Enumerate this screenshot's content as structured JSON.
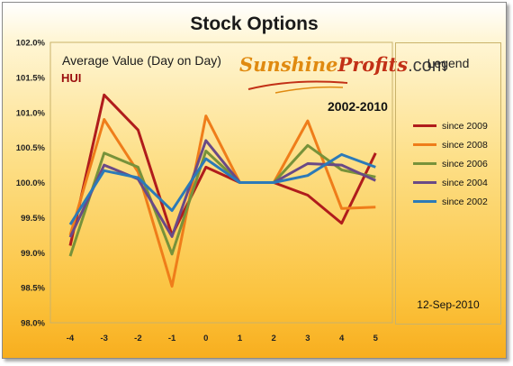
{
  "title": "Stock Options",
  "chart_data": {
    "type": "line",
    "subtitle": "Average Value (Day on Day)",
    "asset": "HUI",
    "period": "2002-2010",
    "date": "12-Sep-2010",
    "legend_title": "Legend",
    "legend_position": "right",
    "grid": false,
    "x": [
      -4,
      -3,
      -2,
      -1,
      0,
      1,
      2,
      3,
      4,
      5
    ],
    "ylim": [
      98.0,
      102.0
    ],
    "y_ticks": [
      "98.0%",
      "98.5%",
      "99.0%",
      "99.5%",
      "100.0%",
      "100.5%",
      "101.0%",
      "101.5%",
      "102.0%"
    ],
    "x_ticks": [
      "-4",
      "-3",
      "-2",
      "-1",
      "0",
      "1",
      "2",
      "3",
      "4",
      "5"
    ],
    "series": [
      {
        "name": "since 2009",
        "color": "#b01c1c",
        "values": [
          99.1,
          101.25,
          100.75,
          99.25,
          100.22,
          100.0,
          100.0,
          99.82,
          99.42,
          100.42
        ]
      },
      {
        "name": "since 2008",
        "color": "#ef7d1a",
        "values": [
          99.25,
          100.9,
          100.15,
          98.52,
          100.95,
          100.0,
          100.0,
          100.88,
          99.63,
          99.65
        ]
      },
      {
        "name": "since 2006",
        "color": "#77923a",
        "values": [
          98.95,
          100.42,
          100.22,
          98.98,
          100.45,
          100.0,
          100.0,
          100.53,
          100.18,
          100.08
        ]
      },
      {
        "name": "since 2004",
        "color": "#6a4a86",
        "values": [
          99.22,
          100.25,
          100.05,
          99.23,
          100.6,
          100.0,
          100.0,
          100.27,
          100.25,
          100.03
        ]
      },
      {
        "name": "since 2002",
        "color": "#2c7ab8",
        "values": [
          99.4,
          100.17,
          100.07,
          99.6,
          100.34,
          100.0,
          100.0,
          100.1,
          100.4,
          100.22
        ]
      }
    ]
  },
  "logo": {
    "part1": "Sunshine",
    "part2": "Profits",
    "part3": ".com"
  }
}
